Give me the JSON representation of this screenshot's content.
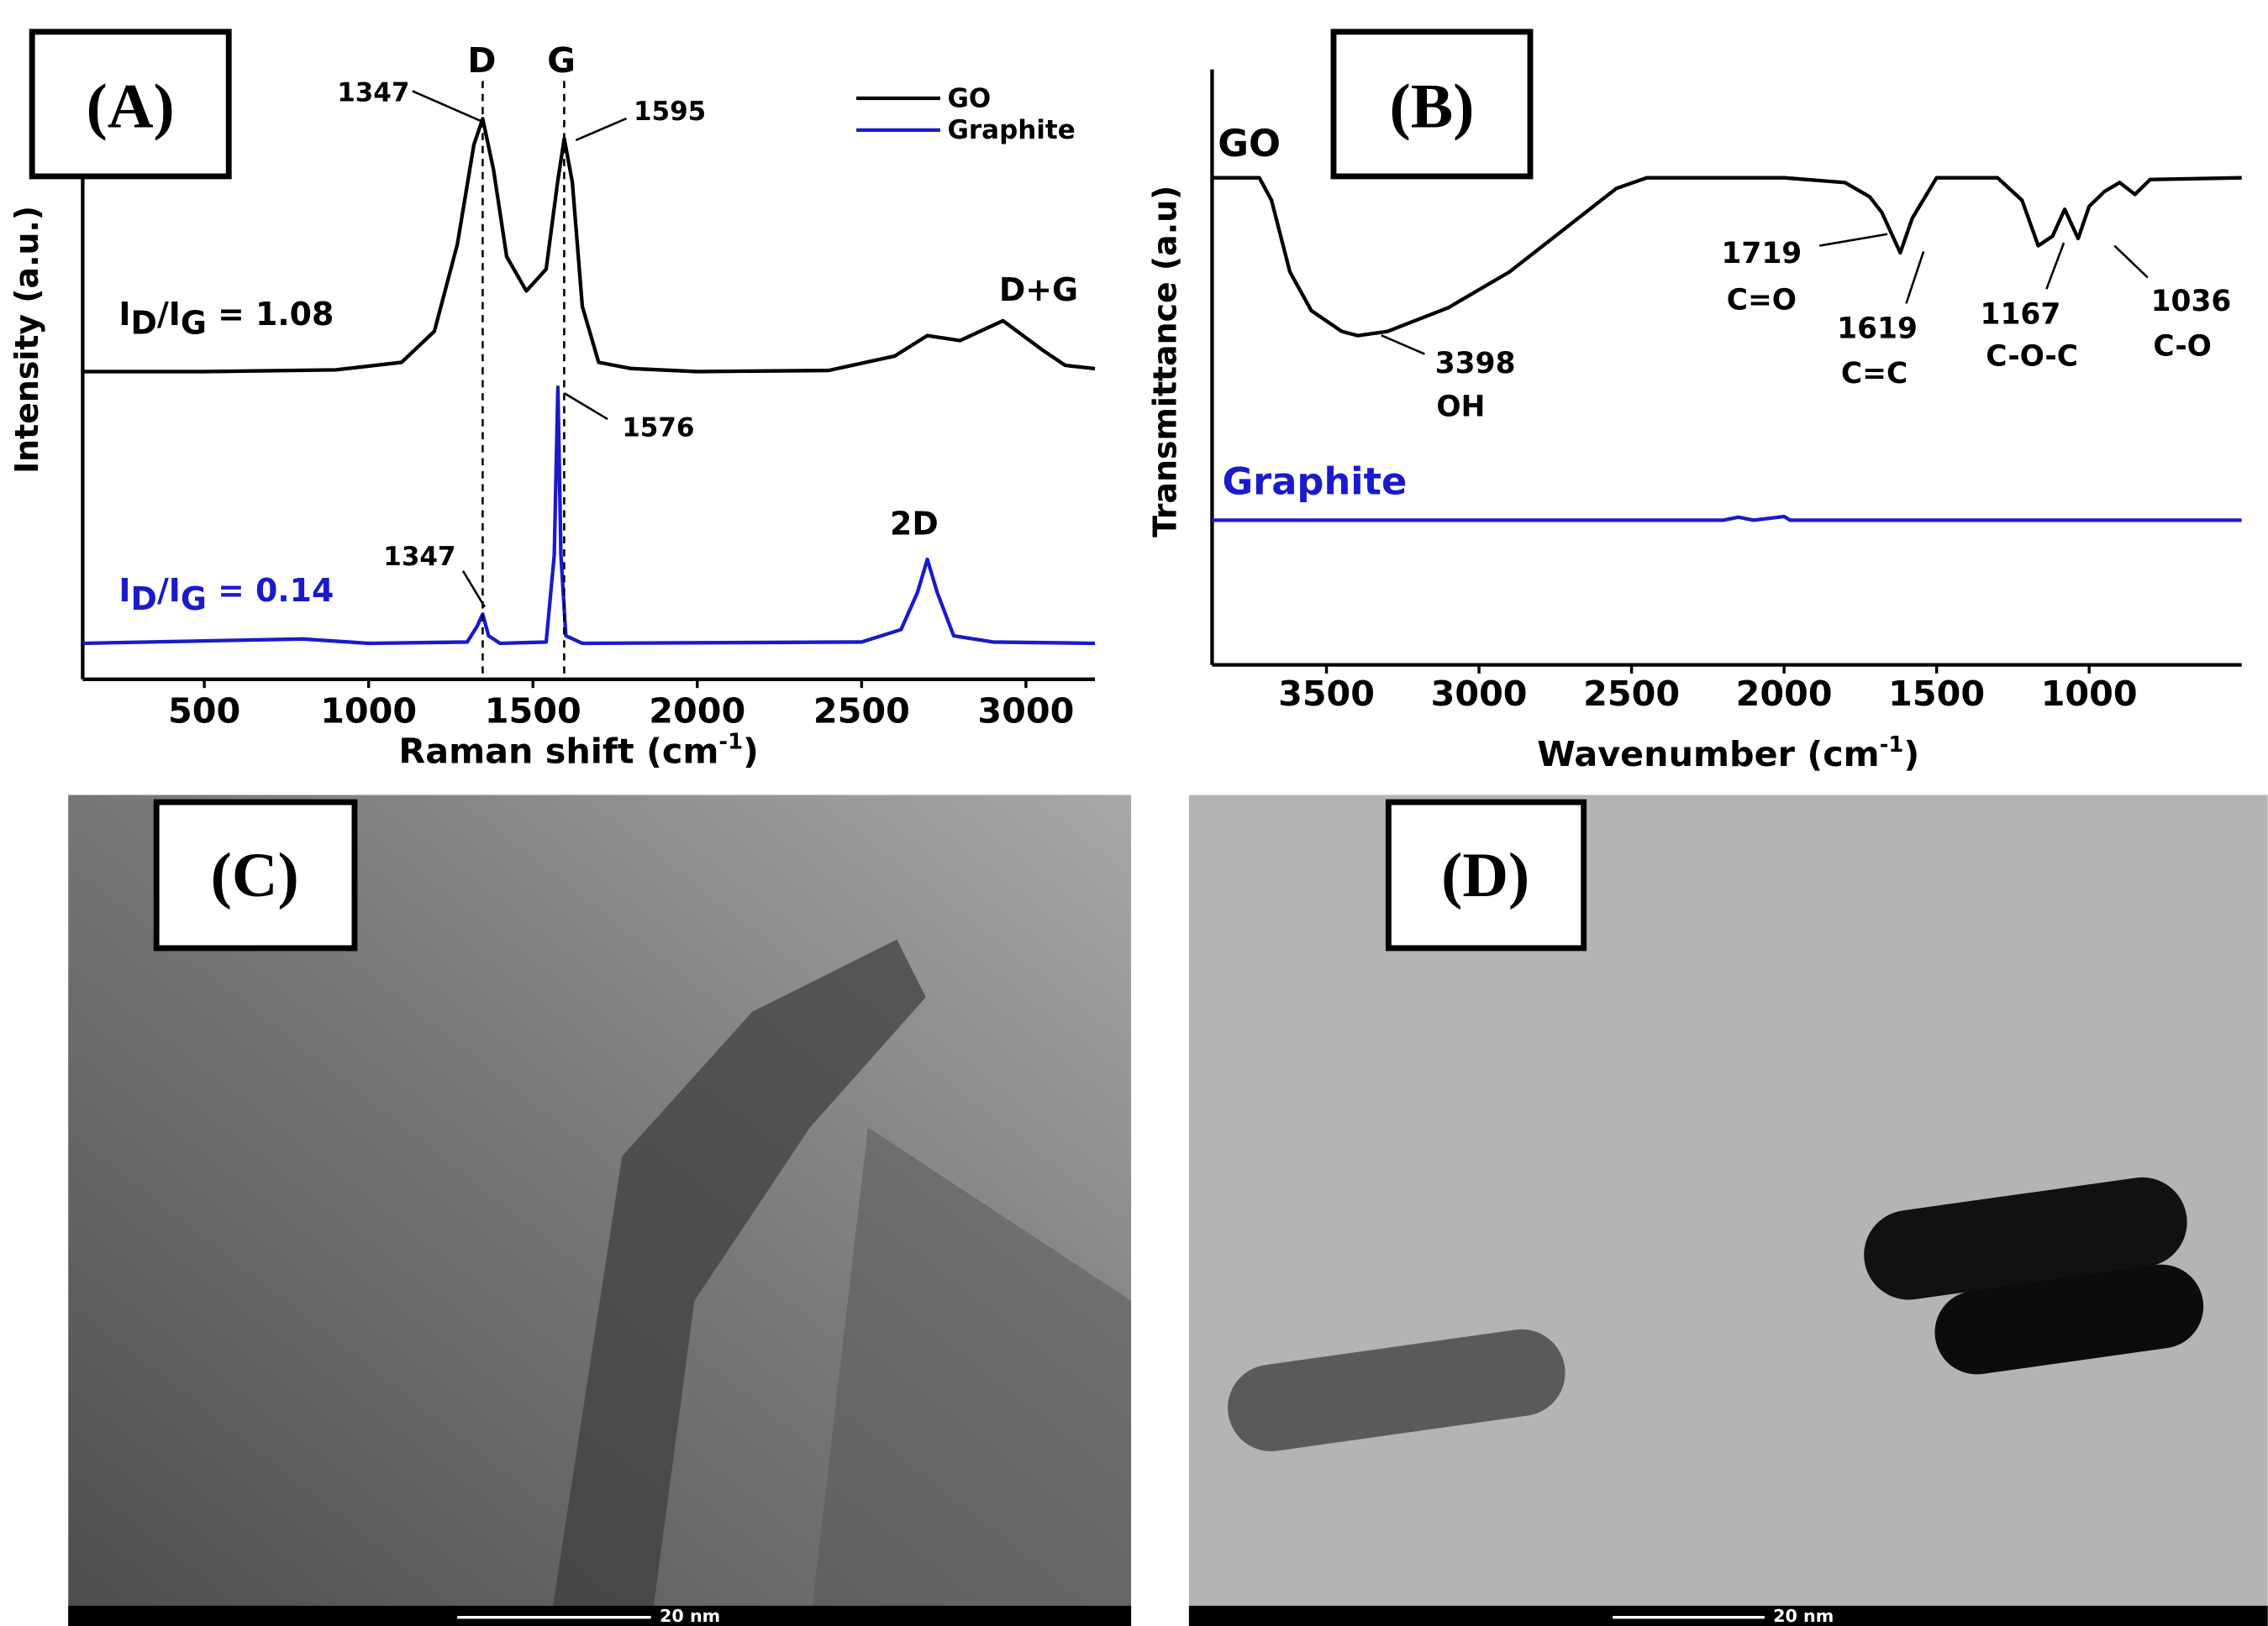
{
  "chart_data": [
    {
      "type": "line",
      "panel_label": "(A)",
      "y_label": "Intensity (a.u.)",
      "x_label": [
        "Raman shift (cm",
        "-1",
        ")"
      ],
      "xlim": [
        130,
        3210
      ],
      "xticks": [
        500,
        1000,
        1500,
        2000,
        2500,
        3000
      ],
      "ylim": [
        0,
        100
      ],
      "legend": "top-right",
      "series": [
        {
          "name": "GO",
          "color": "#000000",
          "x": [
            130,
            500,
            900,
            1100,
            1200,
            1270,
            1320,
            1347,
            1380,
            1420,
            1480,
            1540,
            1575,
            1595,
            1620,
            1650,
            1700,
            1800,
            2000,
            2400,
            2600,
            2700,
            2800,
            2930,
            3050,
            3120,
            3210
          ],
          "values": [
            49.5,
            49.5,
            49.8,
            51,
            56,
            70,
            86,
            90.2,
            82,
            68,
            62.5,
            66,
            80,
            87,
            80,
            60,
            51,
            50,
            49.5,
            49.7,
            52,
            55.3,
            54.5,
            57.7,
            53,
            50.5,
            50
          ]
        },
        {
          "name": "Graphite",
          "color": "#1a1acc",
          "x": [
            130,
            800,
            1000,
            1300,
            1330,
            1347,
            1365,
            1400,
            1540,
            1565,
            1576,
            1585,
            1600,
            1650,
            2500,
            2620,
            2670,
            2700,
            2730,
            2780,
            2900,
            3210
          ],
          "values": [
            5.8,
            6.5,
            5.8,
            6,
            8.5,
            10.5,
            7,
            5.8,
            6,
            20,
            47,
            20,
            7,
            5.8,
            6,
            8,
            14,
            19.3,
            14,
            7,
            6,
            5.8
          ]
        }
      ],
      "annotations": [
        "D",
        "G",
        "1347",
        "1595",
        "D+G",
        "1576",
        "1347",
        "2D"
      ],
      "ratios": [
        [
          "I",
          "D",
          "/I",
          "G",
          " = 1.08"
        ],
        [
          "I",
          "D",
          "/I",
          "G",
          " = 0.14"
        ]
      ]
    },
    {
      "type": "line",
      "panel_label": "(B)",
      "y_label": "Transmittance (a.u)",
      "x_label": [
        "Wavenumber (cm",
        "-1",
        ")"
      ],
      "xlim": [
        3875,
        500
      ],
      "xticks": [
        3500,
        3000,
        2500,
        2000,
        1500,
        1000
      ],
      "ylim": [
        0,
        100
      ],
      "series": [
        {
          "name": "GO",
          "color": "#000000",
          "x": [
            3875,
            3720,
            3680,
            3620,
            3550,
            3450,
            3398,
            3300,
            3100,
            2900,
            2700,
            2550,
            2450,
            2000,
            1800,
            1719,
            1680,
            1619,
            1580,
            1500,
            1300,
            1220,
            1167,
            1120,
            1080,
            1036,
            1000,
            950,
            900,
            850,
            800,
            500
          ],
          "values": [
            81.8,
            81.8,
            78,
            66,
            59.5,
            56,
            55.3,
            56,
            60,
            66,
            74,
            80,
            81.8,
            81.8,
            81,
            78.6,
            76,
            69.2,
            75,
            81.8,
            81.8,
            78,
            70.4,
            72,
            76.5,
            71.6,
            77,
            79.5,
            81,
            79,
            81.5,
            81.8
          ]
        },
        {
          "name": "Graphite",
          "color": "#1a1acc",
          "x": [
            3875,
            2200,
            2150,
            2100,
            2000,
            1980,
            1900,
            500
          ],
          "values": [
            24.3,
            24.3,
            24.8,
            24.3,
            24.9,
            24.3,
            24.3,
            24.3
          ]
        }
      ],
      "annotations": [
        "3398",
        "OH",
        "1719",
        "C=O",
        "1619",
        "C=C",
        "1167",
        "C-O-C",
        "1036",
        "C-O"
      ]
    }
  ],
  "images": [
    {
      "panel_label": "(C)",
      "scale_bar": "20 nm"
    },
    {
      "panel_label": "(D)",
      "scale_bar": "20 nm"
    }
  ]
}
